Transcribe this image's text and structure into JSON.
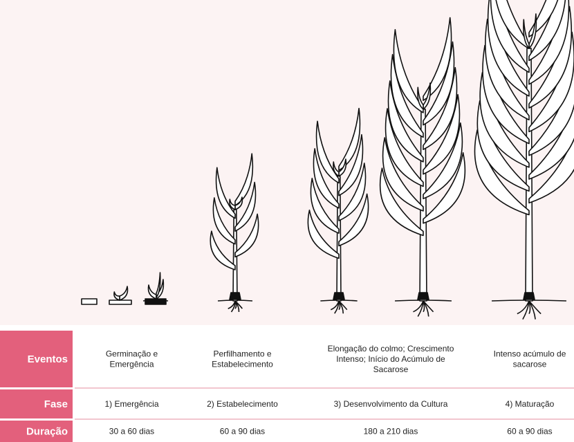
{
  "table": {
    "rows": [
      {
        "label": "Eventos",
        "cells": [
          [
            "Germinação e",
            "Emergência"
          ],
          [
            "Perfilhamento e",
            "Estabelecimento"
          ],
          [
            "Elongação do colmo; Crescimento",
            "Intenso; Início do Acúmulo de",
            "Sacarose"
          ],
          [
            "Intenso acúmulo de",
            "sacarose"
          ]
        ]
      },
      {
        "label": "Fase",
        "cells": [
          [
            "1) Emergência"
          ],
          [
            "2) Estabelecimento"
          ],
          [
            "3) Desenvolvimento da Cultura"
          ],
          [
            "4) Maturação"
          ]
        ]
      },
      {
        "label": "Duração",
        "cells": [
          [
            "30 a 60 dias"
          ],
          [
            "60 a 90 dias"
          ],
          [
            "180 a 210 dias"
          ],
          [
            "60 a 90 dias"
          ]
        ]
      }
    ]
  }
}
